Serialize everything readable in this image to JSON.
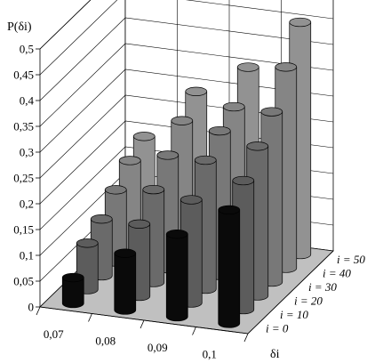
{
  "chart_data": {
    "type": "bar",
    "subtype": "3d-cylinder",
    "title": "",
    "ylabel": "P(δi)",
    "xlabel": "δi",
    "ylim": [
      0,
      0.5
    ],
    "y_ticks": [
      "0",
      "0,05",
      "0,1",
      "0,15",
      "0,2",
      "0,25",
      "0,3",
      "0,35",
      "0,4",
      "0,45",
      "0,5"
    ],
    "categories": [
      "0,07",
      "0,08",
      "0,09",
      "0,1"
    ],
    "depth_axis_labels": [
      "i = 0",
      "i = 10",
      "i = 20",
      "i = 30",
      "i = 40",
      "i = 50"
    ],
    "grid": true,
    "series": [
      {
        "name": "i = 0",
        "color": "#0a0a0a",
        "values": [
          0.05,
          0.11,
          0.16,
          0.22
        ]
      },
      {
        "name": "i = 10",
        "color": "#5c5c5c",
        "values": [
          0.09,
          0.14,
          0.2,
          0.25
        ]
      },
      {
        "name": "i = 20",
        "color": "#6a6a6a",
        "values": [
          0.11,
          0.18,
          0.25,
          0.29
        ]
      },
      {
        "name": "i = 30",
        "color": "#787878",
        "values": [
          0.14,
          0.22,
          0.28,
          0.33
        ]
      },
      {
        "name": "i = 40",
        "color": "#858585",
        "values": [
          0.17,
          0.26,
          0.3,
          0.39
        ]
      },
      {
        "name": "i = 50",
        "color": "#929292",
        "values": [
          0.19,
          0.29,
          0.35,
          0.45
        ]
      }
    ]
  }
}
